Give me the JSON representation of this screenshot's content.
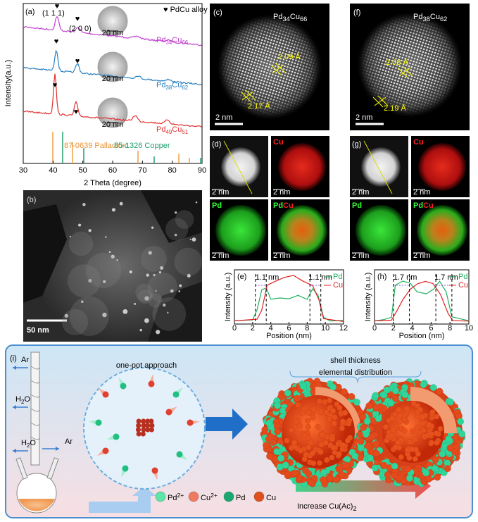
{
  "panel_a": {
    "label": "(a)",
    "peaks": [
      "(1 1 1)",
      "(2 0 0)"
    ],
    "marker": "♥",
    "legend": "♥ PdCu alloy",
    "samples": [
      [
        "Pd",
        "34",
        "Cu",
        "66"
      ],
      [
        "Pd",
        "38",
        "Cu",
        "62"
      ],
      [
        "Pd",
        "49",
        "Cu",
        "51"
      ]
    ],
    "inset_scale": "20 nm",
    "references": [
      "87-0639 Palladium",
      "85-1326 Copper"
    ],
    "xticks": [
      "30",
      "40",
      "50",
      "60",
      "70",
      "80",
      "90"
    ],
    "xlabel": "2 Theta (degree)",
    "ylabel": "Intensity(a.u.)"
  },
  "panel_b": {
    "label": "(b)",
    "scale": "50 nm"
  },
  "panel_c": {
    "label": "(c)",
    "sample": [
      "Pd",
      "34",
      "Cu",
      "66"
    ],
    "spacings": [
      "2.09 Å",
      "2.17 Å"
    ],
    "scale": "2 nm"
  },
  "panel_f": {
    "label": "(f)",
    "sample": [
      "Pd",
      "38",
      "Cu",
      "62"
    ],
    "spacings": [
      "2.08 Å",
      "2.19 Å"
    ],
    "scale": "2 nm"
  },
  "panel_d": {
    "label": "(d)",
    "maps": [
      "Cu",
      "Pd",
      "Pd",
      "Cu"
    ],
    "scale": "2 nm"
  },
  "panel_g": {
    "label": "(g)",
    "maps": [
      "Cu",
      "Pd",
      "Pd",
      "Cu"
    ],
    "scale": "2 nm"
  },
  "panel_e": {
    "label": "(e)",
    "legend": [
      "Pd",
      "Cu"
    ],
    "thickness": [
      "1.1 nm",
      "1.1 nm"
    ],
    "xticks": [
      "0",
      "2",
      "4",
      "6",
      "8",
      "10",
      "12"
    ],
    "xlabel": "Position (nm)",
    "ylabel": "Intensity (a.u.)"
  },
  "panel_h": {
    "label": "(h)",
    "legend": [
      "Pd",
      "Cu"
    ],
    "thickness": [
      "1.7 nm",
      "1.7 nm"
    ],
    "xticks": [
      "0",
      "2",
      "4",
      "6",
      "8",
      "10"
    ],
    "xlabel": "Position (nm)",
    "ylabel": "Intensity (a.u.)"
  },
  "panel_i": {
    "label": "(i)",
    "gas": [
      "Ar",
      "Ar"
    ],
    "water": [
      [
        "H",
        "2",
        "O"
      ],
      [
        "H",
        "2",
        "O"
      ]
    ],
    "method": "one-pot approach",
    "notes": [
      "shell thickness",
      "elemental distribution"
    ],
    "legend": [
      [
        "Pd",
        "2+"
      ],
      [
        "Cu",
        "2+"
      ],
      [
        "Pd"
      ],
      [
        "Cu"
      ]
    ],
    "trend": [
      "Increase Cu(Ac)",
      "2"
    ]
  }
}
